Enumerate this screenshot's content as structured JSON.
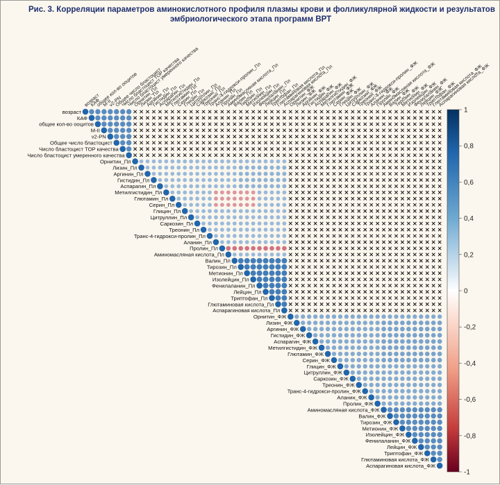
{
  "caption": {
    "line1": "Рис. 3. Корреляции параметров аминокислотного профиля плазмы крови и фолликулярной жидкости и результатов",
    "line2": "эмбриологического этапа программ ВРТ"
  },
  "colors": {
    "positive": "#1f5f9b",
    "negative": "#b2182b",
    "neutral": "#ffffff",
    "cross": "#111111"
  },
  "chart_data": {
    "type": "heatmap",
    "subtype": "correlation-matrix-upper-triangle",
    "title": "Рис. 3. Корреляции параметров аминокислотного профиля плазмы крови и фолликулярной жидкости и результатов эмбриологического этапа программ ВРТ",
    "variables": [
      "возраст",
      "КАФ",
      "общее кол-во ооцитов",
      "M-II",
      "v2-PN",
      "Общее число бластоцист",
      "Число бластоцист TOP качества",
      "Число бластоцист умеренного качества",
      "Орнитин_Пл",
      "Лизин_Пл",
      "Аргинин_Пл",
      "Гистидин_Пл",
      "Аспарагин_Пл",
      "Метилгистидин_Пл",
      "Глютамин_Пл",
      "Серин_Пл",
      "Глицин_Пл",
      "Цитруллин_Пл",
      "Саркозин_Пл",
      "Треонин_Пл",
      "Транс-4-гидрокси-пролин_Пл",
      "Аланин_Пл",
      "Пролин_Пл",
      "Аминомасляная кислота_Пл",
      "Валин_Пл",
      "Тирозин_Пл",
      "Метионин_Пл",
      "Изолейцин_Пл",
      "Фенилаланин_Пл",
      "Лейцин_Пл",
      "Триптофан_Пл",
      "Глютаминовая кислота_Пл",
      "Аспарагиновая кислота_Пл",
      "Орнитин_ФЖ",
      "Лизин_ФЖ",
      "Аргинин_ФЖ",
      "Гистидин_ФЖ",
      "Аспарагин_ФЖ",
      "Метилгистидин_ФЖ",
      "Глютамин_ФЖ",
      "Серин_ФЖ",
      "Глицин_ФЖ",
      "Цитруллин_ФЖ",
      "Саркозин_ФЖ",
      "Треонин_ФЖ",
      "Транс-4-гидрокси-пролин_ФЖ",
      "Аланин_ФЖ",
      "Пролин_ФЖ",
      "Аминомасляная кислота_ФЖ",
      "Валин_ФЖ",
      "Тирозин_ФЖ",
      "Метионин_ФЖ",
      "Изолейцин_ФЖ",
      "Фенилаланин_ФЖ",
      "Лейцин_ФЖ",
      "Триптофан_ФЖ",
      "Глютаминовая кислота_ФЖ",
      "Аспарагиновая кислота_ФЖ"
    ],
    "colorbar": {
      "min": -1,
      "max": 1,
      "ticks": [
        "1",
        "0,8",
        "0,6",
        "0,4",
        "0,2",
        "0",
        "-0,2",
        "-0,4",
        "-0,6",
        "-0,8",
        "-1"
      ]
    },
    "legend": "colorbar right",
    "marker": "circle size and color proportional to correlation; crosses mark non-significant coefficients",
    "blocks": [
      {
        "rows": [
          0,
          7
        ],
        "cols": [
          0,
          7
        ],
        "value": 0.75
      },
      {
        "rows": [
          8,
          32
        ],
        "cols": [
          8,
          32
        ],
        "value": 0.45
      },
      {
        "rows": [
          33,
          57
        ],
        "cols": [
          33,
          57
        ],
        "value": 0.55
      },
      {
        "rows": [
          22,
          22
        ],
        "cols": [
          23,
          32
        ],
        "value": -0.6
      },
      {
        "rows": [
          13,
          15
        ],
        "cols": [
          21,
          27
        ],
        "value": -0.45
      },
      {
        "rows": [
          24,
          31
        ],
        "cols": [
          25,
          32
        ],
        "value": 0.85
      },
      {
        "rows": [
          48,
          57
        ],
        "cols": [
          49,
          57
        ],
        "value": 0.75
      },
      {
        "rows": [
          9,
          12
        ],
        "cols": [
          25,
          32
        ],
        "value": 0.5
      },
      {
        "rows": [
          34,
          40
        ],
        "cols": [
          48,
          57
        ],
        "value": 0.6
      }
    ]
  }
}
